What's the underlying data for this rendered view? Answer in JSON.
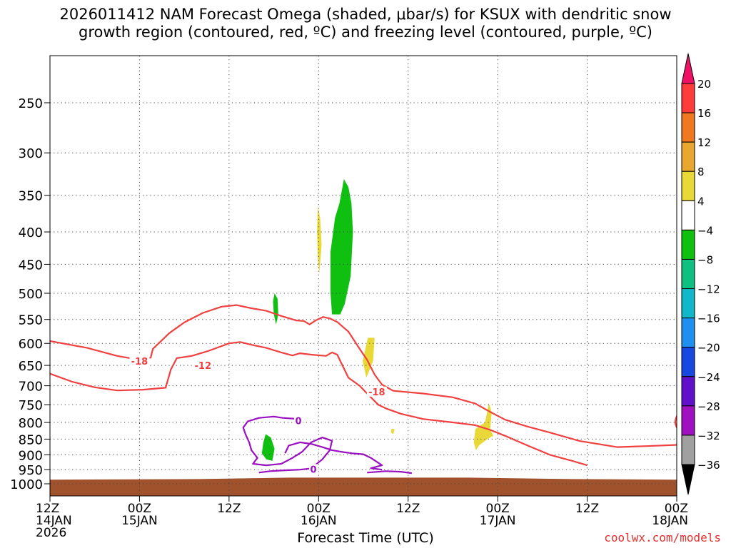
{
  "title_line1": "2026011412 NAM Forecast Omega (shaded, μbar/s) for KSUX with dendritic snow",
  "title_line2": "growth region (contoured, red, ºC) and freezing level (contoured, purple, ºC)",
  "credit": "coolwx.com/models",
  "chart_data": {
    "type": "heatmap",
    "title": "2026011412 NAM Forecast Omega (shaded, μbar/s) for KSUX with dendritic snow growth region (contoured, red, ºC) and freezing level (contoured, purple, ºC)",
    "xlabel": "Forecast Time (UTC)",
    "ylabel": "",
    "x_unit": "hours from 2026-01-14 12Z",
    "xlim": [
      0,
      84
    ],
    "ylim": [
      1040,
      200
    ],
    "y_scale": "log",
    "grid": true,
    "x_ticks": [
      {
        "h": 0,
        "line1": "12Z",
        "line2": "14JAN",
        "line3": "2026"
      },
      {
        "h": 12,
        "line1": "00Z",
        "line2": "15JAN",
        "line3": ""
      },
      {
        "h": 24,
        "line1": "12Z",
        "line2": "",
        "line3": ""
      },
      {
        "h": 36,
        "line1": "00Z",
        "line2": "16JAN",
        "line3": ""
      },
      {
        "h": 48,
        "line1": "12Z",
        "line2": "",
        "line3": ""
      },
      {
        "h": 60,
        "line1": "00Z",
        "line2": "17JAN",
        "line3": ""
      },
      {
        "h": 72,
        "line1": "12Z",
        "line2": "",
        "line3": ""
      },
      {
        "h": 84,
        "line1": "00Z",
        "line2": "18JAN",
        "line3": ""
      }
    ],
    "y_ticks": [
      "250",
      "300",
      "350",
      "400",
      "450",
      "500",
      "550",
      "600",
      "650",
      "700",
      "750",
      "800",
      "850",
      "900",
      "950",
      "1000"
    ],
    "colorbar": {
      "labels": [
        "20",
        "16",
        "12",
        "8",
        "4",
        "−4",
        "−8",
        "−12",
        "−16",
        "−20",
        "−24",
        "−28",
        "−32",
        "−36"
      ],
      "colors": [
        "#ee1166",
        "#ff3b3b",
        "#f07820",
        "#e8a830",
        "#e8d838",
        "#ffffff",
        "#10c010",
        "#10c080",
        "#10b8c8",
        "#2090f0",
        "#1848e0",
        "#6010c8",
        "#a010c0",
        "#a0a0a0",
        "#000000"
      ]
    },
    "ground": {
      "color": "#a0522d",
      "top_hpa": [
        [
          0,
          985
        ],
        [
          20,
          983
        ],
        [
          32,
          978
        ],
        [
          44,
          978
        ],
        [
          56,
          978
        ],
        [
          70,
          983
        ],
        [
          84,
          985
        ]
      ]
    },
    "omega_shading": [
      {
        "value_range": [
          -8,
          -4
        ],
        "color": "#10c010",
        "polygon": [
          [
            39.4,
            330
          ],
          [
            40.0,
            340
          ],
          [
            40.4,
            360
          ],
          [
            40.6,
            400
          ],
          [
            40.3,
            470
          ],
          [
            39.5,
            520
          ],
          [
            38.9,
            540
          ],
          [
            37.8,
            540
          ],
          [
            37.6,
            500
          ],
          [
            37.6,
            430
          ],
          [
            38.2,
            380
          ],
          [
            38.8,
            360
          ]
        ]
      },
      {
        "value_range": [
          -8,
          -4
        ],
        "color": "#10c010",
        "polygon": [
          [
            30.1,
            500
          ],
          [
            30.5,
            510
          ],
          [
            30.6,
            540
          ],
          [
            30.3,
            560
          ],
          [
            30.0,
            540
          ],
          [
            29.9,
            515
          ]
        ]
      },
      {
        "value_range": [
          -8,
          -4
        ],
        "color": "#10c010",
        "polygon": [
          [
            28.9,
            835
          ],
          [
            29.6,
            845
          ],
          [
            30.1,
            880
          ],
          [
            29.8,
            920
          ],
          [
            29.0,
            915
          ],
          [
            28.4,
            895
          ],
          [
            28.6,
            860
          ]
        ]
      },
      {
        "value_range": [
          4,
          8
        ],
        "color": "#e8d838",
        "polygon": [
          [
            35.9,
            365
          ],
          [
            36.2,
            380
          ],
          [
            36.4,
            420
          ],
          [
            36.1,
            465
          ],
          [
            35.9,
            440
          ],
          [
            35.8,
            400
          ]
        ]
      },
      {
        "value_range": [
          4,
          8
        ],
        "color": "#e8d838",
        "polygon": [
          [
            42.6,
            588
          ],
          [
            43.5,
            588
          ],
          [
            43.3,
            640
          ],
          [
            42.4,
            680
          ],
          [
            41.9,
            640
          ],
          [
            42.3,
            610
          ]
        ]
      },
      {
        "value_range": [
          4,
          8
        ],
        "color": "#e8d838",
        "polygon": [
          [
            45.8,
            818
          ],
          [
            46.2,
            820
          ],
          [
            46.0,
            835
          ],
          [
            45.7,
            830
          ]
        ]
      },
      {
        "value_range": [
          4,
          8
        ],
        "color": "#e8d838",
        "polygon": [
          [
            58.8,
            745
          ],
          [
            59.2,
            770
          ],
          [
            59.0,
            820
          ],
          [
            59.4,
            840
          ],
          [
            58.6,
            850
          ],
          [
            57.5,
            870
          ],
          [
            57.1,
            885
          ],
          [
            56.8,
            860
          ],
          [
            57.0,
            820
          ],
          [
            57.6,
            810
          ],
          [
            58.3,
            800
          ],
          [
            58.6,
            770
          ]
        ]
      }
    ],
    "dgz_contours": [
      {
        "label": "-18",
        "label_at": [
          [
            12.0,
            640
          ],
          [
            43.8,
            715
          ]
        ],
        "points": [
          [
            0,
            595
          ],
          [
            5,
            610
          ],
          [
            9,
            628
          ],
          [
            12,
            637
          ],
          [
            13.5,
            632
          ],
          [
            13.8,
            612
          ],
          [
            16,
            578
          ],
          [
            18,
            556
          ],
          [
            20.5,
            537
          ],
          [
            23,
            525
          ],
          [
            25,
            522
          ],
          [
            27,
            528
          ],
          [
            29,
            533
          ],
          [
            31,
            543
          ],
          [
            33,
            552
          ],
          [
            34,
            553
          ],
          [
            34.8,
            560
          ],
          [
            35.6,
            552
          ],
          [
            36.6,
            545
          ],
          [
            37.5,
            548
          ],
          [
            38.5,
            555
          ],
          [
            40,
            575
          ],
          [
            41.5,
            612
          ],
          [
            42.5,
            637
          ],
          [
            43.5,
            672
          ],
          [
            44.5,
            697
          ],
          [
            46,
            713
          ],
          [
            50,
            720
          ],
          [
            54,
            730
          ],
          [
            57,
            747
          ],
          [
            59,
            770
          ],
          [
            61,
            792
          ],
          [
            64,
            812
          ],
          [
            67,
            830
          ],
          [
            71,
            856
          ],
          [
            76,
            875
          ],
          [
            80,
            872
          ],
          [
            84,
            868
          ]
        ]
      },
      {
        "label": "-12",
        "label_at": [
          [
            20.5,
            650
          ]
        ],
        "points": [
          [
            0,
            670
          ],
          [
            3,
            690
          ],
          [
            6,
            704
          ],
          [
            9,
            712
          ],
          [
            12.5,
            710
          ],
          [
            15.5,
            705
          ],
          [
            16.2,
            660
          ],
          [
            17,
            633
          ],
          [
            19,
            628
          ],
          [
            21,
            618
          ],
          [
            22,
            612
          ],
          [
            24,
            600
          ],
          [
            25.5,
            597
          ],
          [
            27,
            603
          ],
          [
            29,
            610
          ],
          [
            31,
            620
          ],
          [
            32.5,
            627
          ],
          [
            33.5,
            622
          ],
          [
            35,
            625
          ],
          [
            37,
            628
          ],
          [
            37.8,
            620
          ],
          [
            38.5,
            625
          ],
          [
            39.2,
            650
          ],
          [
            40,
            680
          ],
          [
            41.5,
            700
          ],
          [
            42.5,
            720
          ],
          [
            44,
            750
          ],
          [
            45,
            760
          ],
          [
            47,
            775
          ],
          [
            50,
            790
          ],
          [
            54,
            800
          ],
          [
            57,
            808
          ],
          [
            59,
            822
          ],
          [
            61,
            840
          ],
          [
            64,
            870
          ],
          [
            67,
            900
          ],
          [
            70,
            920
          ],
          [
            72,
            935
          ]
        ]
      }
    ],
    "freezing_contours": [
      {
        "label": "0",
        "label_at": [
          [
            33.3,
            795
          ]
        ],
        "points": [
          [
            33.3,
            790
          ],
          [
            31.2,
            787
          ],
          [
            30.0,
            783
          ],
          [
            28.0,
            787
          ],
          [
            26.5,
            797
          ],
          [
            25.9,
            815
          ],
          [
            26.2,
            835
          ],
          [
            26.7,
            860
          ],
          [
            27.0,
            885
          ],
          [
            27.8,
            910
          ],
          [
            27.2,
            930
          ],
          [
            29.0,
            935
          ],
          [
            31.0,
            930
          ],
          [
            32.5,
            910
          ],
          [
            33.8,
            890
          ],
          [
            35.0,
            860
          ],
          [
            36.5,
            845
          ],
          [
            37.8,
            855
          ],
          [
            37.5,
            885
          ],
          [
            36.5,
            915
          ],
          [
            35.5,
            935
          ],
          [
            35.0,
            942
          ]
        ]
      },
      {
        "label": "0",
        "label_at": [
          [
            35.3,
            948
          ]
        ],
        "points": [
          [
            35.3,
            945
          ],
          [
            33.5,
            950
          ],
          [
            31.5,
            952
          ],
          [
            29.5,
            955
          ],
          [
            28.0,
            960
          ]
        ]
      },
      {
        "label": "",
        "label_at": [],
        "points": [
          [
            31.5,
            895
          ],
          [
            32.0,
            870
          ],
          [
            33.5,
            860
          ],
          [
            35.0,
            865
          ],
          [
            36.5,
            875
          ],
          [
            37.8,
            885
          ],
          [
            39.0,
            890
          ],
          [
            40.5,
            895
          ],
          [
            42.0,
            898
          ],
          [
            43.0,
            910
          ],
          [
            44.5,
            935
          ],
          [
            43.0,
            945
          ],
          [
            44.5,
            950
          ]
        ]
      },
      {
        "label": "",
        "label_at": [],
        "points": [
          [
            42.5,
            960
          ],
          [
            45,
            955
          ],
          [
            47,
            957
          ],
          [
            48.5,
            962
          ]
        ]
      }
    ],
    "contour_colors": {
      "dgz": "#f04040",
      "freezing": "#9a10c0"
    }
  }
}
